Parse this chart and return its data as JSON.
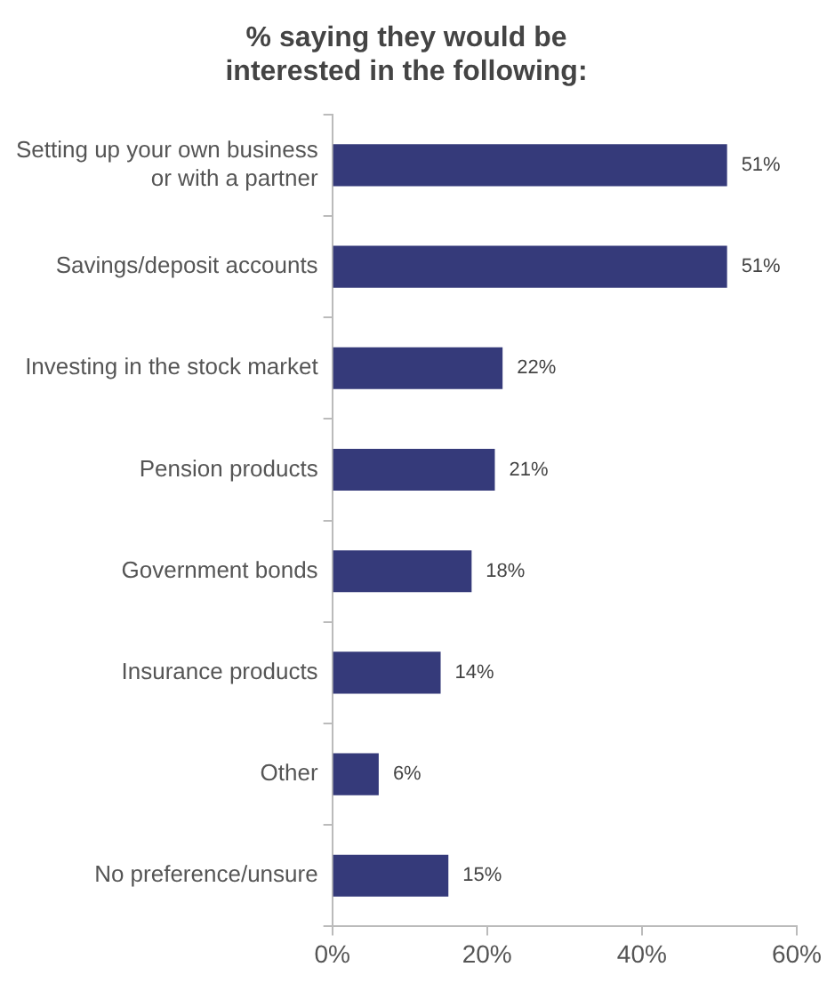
{
  "chart_data": {
    "type": "bar",
    "orientation": "horizontal",
    "title": "% saying they would be interested in the following:",
    "categories": [
      "Setting up your own business or with a partner",
      "Savings/deposit accounts",
      "Investing in the stock market",
      "Pension products",
      "Government bonds",
      "Insurance products",
      "Other",
      "No preference/unsure"
    ],
    "values": [
      51,
      51,
      22,
      21,
      18,
      14,
      6,
      15
    ],
    "value_labels": [
      "51%",
      "51%",
      "22%",
      "21%",
      "18%",
      "14%",
      "6%",
      "15%"
    ],
    "color": "#353a7a",
    "xlim": [
      0,
      60
    ],
    "xticks": [
      {
        "value": 0,
        "label": "0%"
      },
      {
        "value": 20,
        "label": "20%"
      },
      {
        "value": 40,
        "label": "40%"
      },
      {
        "value": 60,
        "label": "60%"
      }
    ],
    "grid": false,
    "legend": false
  }
}
